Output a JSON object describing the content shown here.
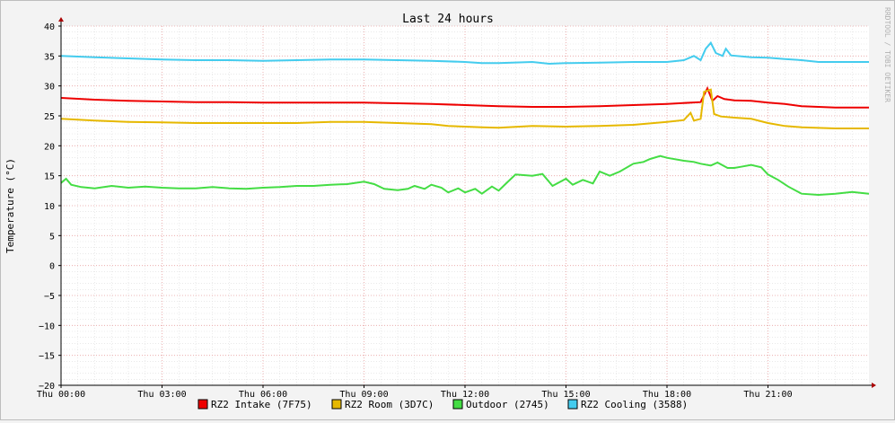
{
  "chart_data": {
    "type": "line",
    "title": "Last 24 hours",
    "ylabel": "Temperature (°C)",
    "xlabel": "",
    "watermark": "RRDTOOL / TOBI OETIKER",
    "ylim": [
      -20,
      40
    ],
    "yticks": [
      40,
      35,
      30,
      25,
      20,
      15,
      10,
      5,
      0,
      -5,
      -10,
      -15,
      -20
    ],
    "xlim": [
      0,
      24
    ],
    "xticks": [
      {
        "x": 0,
        "label": "Thu 00:00"
      },
      {
        "x": 3,
        "label": "Thu 03:00"
      },
      {
        "x": 6,
        "label": "Thu 06:00"
      },
      {
        "x": 9,
        "label": "Thu 09:00"
      },
      {
        "x": 12,
        "label": "Thu 12:00"
      },
      {
        "x": 15,
        "label": "Thu 15:00"
      },
      {
        "x": 18,
        "label": "Thu 18:00"
      },
      {
        "x": 21,
        "label": "Thu 21:00"
      }
    ],
    "grid": true,
    "legend_position": "bottom",
    "series": [
      {
        "name": "RZ2 Intake (7F75)",
        "color": "#ee0000",
        "points": [
          [
            0,
            28.0
          ],
          [
            1,
            27.7
          ],
          [
            2,
            27.5
          ],
          [
            3,
            27.4
          ],
          [
            4,
            27.3
          ],
          [
            5,
            27.3
          ],
          [
            6,
            27.2
          ],
          [
            7,
            27.2
          ],
          [
            8,
            27.2
          ],
          [
            9,
            27.2
          ],
          [
            10,
            27.1
          ],
          [
            11,
            27.0
          ],
          [
            12,
            26.8
          ],
          [
            13,
            26.6
          ],
          [
            14,
            26.5
          ],
          [
            15,
            26.5
          ],
          [
            16,
            26.6
          ],
          [
            17,
            26.8
          ],
          [
            18,
            27.0
          ],
          [
            19,
            27.3
          ],
          [
            19.2,
            29.6
          ],
          [
            19.35,
            27.5
          ],
          [
            19.5,
            28.3
          ],
          [
            19.7,
            27.8
          ],
          [
            20,
            27.6
          ],
          [
            20.5,
            27.5
          ],
          [
            21,
            27.2
          ],
          [
            21.5,
            27.0
          ],
          [
            22,
            26.6
          ],
          [
            23,
            26.4
          ],
          [
            24,
            26.4
          ]
        ]
      },
      {
        "name": "RZ2 Room (3D7C)",
        "color": "#e6b800",
        "points": [
          [
            0,
            24.5
          ],
          [
            1,
            24.2
          ],
          [
            2,
            24.0
          ],
          [
            3,
            23.9
          ],
          [
            4,
            23.8
          ],
          [
            5,
            23.8
          ],
          [
            6,
            23.8
          ],
          [
            7,
            23.8
          ],
          [
            8,
            24.0
          ],
          [
            9,
            24.0
          ],
          [
            10,
            23.8
          ],
          [
            11,
            23.6
          ],
          [
            11.5,
            23.3
          ],
          [
            12,
            23.2
          ],
          [
            12.5,
            23.1
          ],
          [
            13,
            23.0
          ],
          [
            14,
            23.3
          ],
          [
            15,
            23.2
          ],
          [
            16,
            23.3
          ],
          [
            17,
            23.5
          ],
          [
            18,
            24.0
          ],
          [
            18.5,
            24.3
          ],
          [
            18.7,
            25.5
          ],
          [
            18.8,
            24.2
          ],
          [
            19.0,
            24.5
          ],
          [
            19.1,
            29.0
          ],
          [
            19.3,
            29.4
          ],
          [
            19.4,
            25.3
          ],
          [
            19.6,
            24.9
          ],
          [
            20,
            24.7
          ],
          [
            20.5,
            24.5
          ],
          [
            21,
            23.8
          ],
          [
            21.5,
            23.3
          ],
          [
            22,
            23.1
          ],
          [
            23,
            22.9
          ],
          [
            24,
            22.9
          ]
        ]
      },
      {
        "name": "Outdoor (2745)",
        "color": "#44dd44",
        "points": [
          [
            0,
            13.8
          ],
          [
            0.15,
            14.5
          ],
          [
            0.3,
            13.5
          ],
          [
            0.6,
            13.1
          ],
          [
            1,
            12.9
          ],
          [
            1.5,
            13.3
          ],
          [
            2,
            13.0
          ],
          [
            2.5,
            13.2
          ],
          [
            3,
            13.0
          ],
          [
            3.5,
            12.9
          ],
          [
            4,
            12.9
          ],
          [
            4.5,
            13.1
          ],
          [
            5,
            12.9
          ],
          [
            5.5,
            12.8
          ],
          [
            6,
            13.0
          ],
          [
            6.5,
            13.1
          ],
          [
            7,
            13.3
          ],
          [
            7.5,
            13.3
          ],
          [
            8,
            13.5
          ],
          [
            8.5,
            13.6
          ],
          [
            9,
            14.0
          ],
          [
            9.3,
            13.6
          ],
          [
            9.6,
            12.8
          ],
          [
            10,
            12.6
          ],
          [
            10.3,
            12.8
          ],
          [
            10.5,
            13.3
          ],
          [
            10.8,
            12.8
          ],
          [
            11,
            13.5
          ],
          [
            11.3,
            13.0
          ],
          [
            11.5,
            12.2
          ],
          [
            11.8,
            12.9
          ],
          [
            12,
            12.2
          ],
          [
            12.3,
            12.8
          ],
          [
            12.5,
            12.0
          ],
          [
            12.8,
            13.2
          ],
          [
            13,
            12.5
          ],
          [
            13.2,
            13.6
          ],
          [
            13.5,
            15.2
          ],
          [
            14,
            15.0
          ],
          [
            14.3,
            15.3
          ],
          [
            14.6,
            13.3
          ],
          [
            15,
            14.5
          ],
          [
            15.2,
            13.5
          ],
          [
            15.5,
            14.3
          ],
          [
            15.8,
            13.7
          ],
          [
            16,
            15.7
          ],
          [
            16.3,
            15.0
          ],
          [
            16.6,
            15.7
          ],
          [
            17,
            17.0
          ],
          [
            17.3,
            17.3
          ],
          [
            17.5,
            17.8
          ],
          [
            17.8,
            18.3
          ],
          [
            18,
            18.0
          ],
          [
            18.5,
            17.5
          ],
          [
            18.8,
            17.3
          ],
          [
            19,
            17.0
          ],
          [
            19.3,
            16.7
          ],
          [
            19.5,
            17.2
          ],
          [
            19.8,
            16.3
          ],
          [
            20,
            16.3
          ],
          [
            20.2,
            16.5
          ],
          [
            20.5,
            16.8
          ],
          [
            20.8,
            16.4
          ],
          [
            21,
            15.2
          ],
          [
            21.3,
            14.3
          ],
          [
            21.6,
            13.2
          ],
          [
            22,
            12.0
          ],
          [
            22.5,
            11.8
          ],
          [
            23,
            12.0
          ],
          [
            23.5,
            12.3
          ],
          [
            24,
            12.0
          ]
        ]
      },
      {
        "name": "RZ2 Cooling (3588)",
        "color": "#44ccee",
        "points": [
          [
            0,
            35.0
          ],
          [
            1,
            34.8
          ],
          [
            2,
            34.6
          ],
          [
            3,
            34.4
          ],
          [
            4,
            34.3
          ],
          [
            5,
            34.3
          ],
          [
            6,
            34.2
          ],
          [
            7,
            34.3
          ],
          [
            8,
            34.4
          ],
          [
            9,
            34.4
          ],
          [
            10,
            34.3
          ],
          [
            11,
            34.2
          ],
          [
            12,
            34.0
          ],
          [
            12.5,
            33.8
          ],
          [
            13,
            33.8
          ],
          [
            14,
            34.0
          ],
          [
            14.5,
            33.7
          ],
          [
            15,
            33.8
          ],
          [
            16,
            33.9
          ],
          [
            17,
            34.0
          ],
          [
            18,
            34.0
          ],
          [
            18.5,
            34.3
          ],
          [
            18.8,
            35.0
          ],
          [
            19.0,
            34.3
          ],
          [
            19.15,
            36.2
          ],
          [
            19.3,
            37.2
          ],
          [
            19.45,
            35.5
          ],
          [
            19.65,
            35.0
          ],
          [
            19.75,
            36.2
          ],
          [
            19.9,
            35.1
          ],
          [
            20.5,
            34.8
          ],
          [
            21,
            34.7
          ],
          [
            21.5,
            34.5
          ],
          [
            22,
            34.3
          ],
          [
            22.5,
            34.0
          ],
          [
            23,
            34.0
          ],
          [
            24,
            34.0
          ]
        ]
      }
    ]
  }
}
